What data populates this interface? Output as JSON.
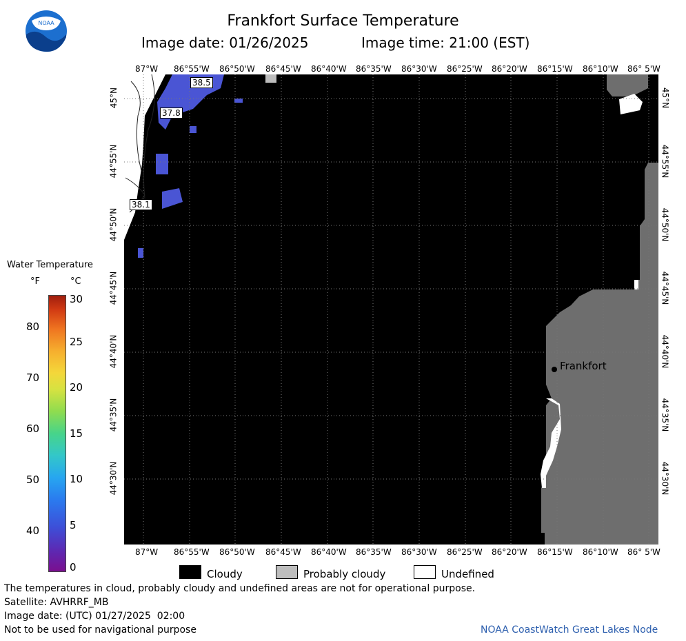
{
  "header": {
    "title": "Frankfort Surface Temperature",
    "image_date": "Image date: 01/26/2025",
    "image_time": "Image time: 21:00 (EST)",
    "logo_text": "NOAA"
  },
  "map": {
    "x_ticks": [
      "87°W",
      "86°55'W",
      "86°50'W",
      "86°45'W",
      "86°40'W",
      "86°35'W",
      "86°30'W",
      "86°25'W",
      "86°20'W",
      "86°15'W",
      "86°10'W",
      "86° 5'W"
    ],
    "y_ticks": [
      "45°N",
      "44°55'N",
      "44°50'N",
      "44°45'N",
      "44°40'N",
      "44°35'N",
      "44°30'N"
    ],
    "place_label": "Frankfort",
    "contour_labels": [
      "38.5",
      "37.8",
      "38.1"
    ]
  },
  "legend": {
    "title": "Water Temperature",
    "unit_f": "°F",
    "unit_c": "°C",
    "f_values": [
      "80",
      "70",
      "60",
      "50",
      "40"
    ],
    "c_values": [
      "30",
      "25",
      "20",
      "15",
      "10",
      "5",
      "0"
    ],
    "cloudy": "Cloudy",
    "probably_cloudy": "Probably cloudy",
    "undefined": "Undefined",
    "colors": {
      "cloudy": "#000000",
      "probably_cloudy": "#bdbdbd",
      "undefined": "#ffffff",
      "land": "#6e6e6e",
      "cold_water": "#4a55d4"
    }
  },
  "footer": {
    "note": "The temperatures in cloud, probably cloudy and undefined areas are not for operational purpose.",
    "satellite": "Satellite: AVHRRF_MB",
    "utc_date": "Image date: (UTC) 01/27/2025  02:00",
    "disclaimer": "Not to be used for navigational purpose",
    "node": "NOAA CoastWatch Great Lakes Node"
  }
}
